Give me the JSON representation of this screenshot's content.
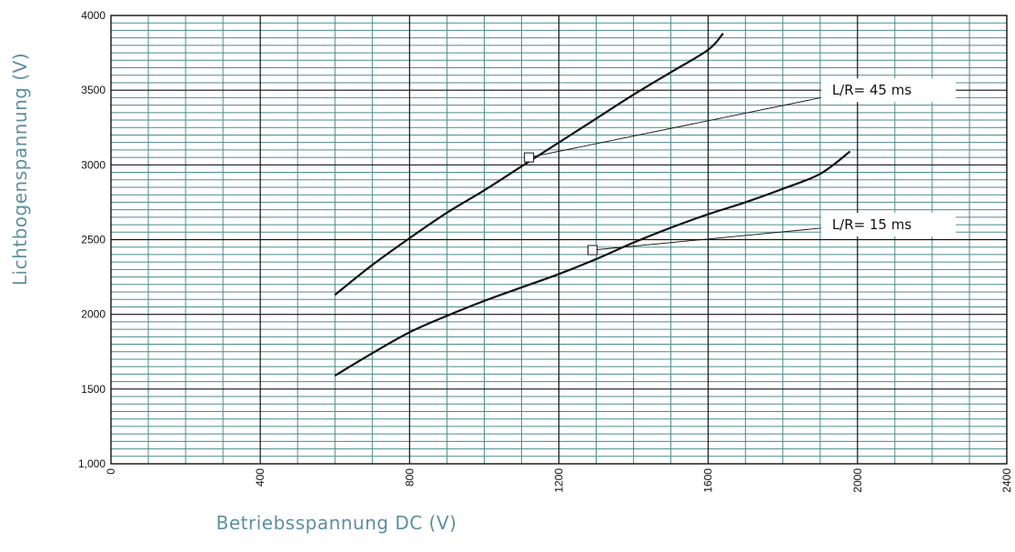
{
  "chart_data": {
    "type": "line",
    "title": "",
    "xlabel": "Betriebsspannung DC (V)",
    "ylabel": "Lichtbogenspannung (V)",
    "xlim": [
      0,
      2400
    ],
    "ylim": [
      1000,
      4000
    ],
    "x_ticks": [
      {
        "value": 0,
        "label": "0"
      },
      {
        "value": 400,
        "label": "400"
      },
      {
        "value": 800,
        "label": "800"
      },
      {
        "value": 1200,
        "label": "1200"
      },
      {
        "value": 1600,
        "label": "1600"
      },
      {
        "value": 2000,
        "label": "2000"
      },
      {
        "value": 2400,
        "label": "2400"
      }
    ],
    "y_ticks": [
      {
        "value": 1000,
        "label": "1,000"
      },
      {
        "value": 1500,
        "label": "1500"
      },
      {
        "value": 2000,
        "label": "2000"
      },
      {
        "value": 2500,
        "label": "2500"
      },
      {
        "value": 3000,
        "label": "3000"
      },
      {
        "value": 3500,
        "label": "3500"
      },
      {
        "value": 4000,
        "label": "4000"
      }
    ],
    "grid": true,
    "series": [
      {
        "name": "L/R= 45 ms",
        "x": [
          600,
          700,
          800,
          900,
          1000,
          1100,
          1200,
          1300,
          1400,
          1500,
          1600,
          1640
        ],
        "y": [
          2130,
          2330,
          2510,
          2680,
          2830,
          2990,
          3150,
          3310,
          3470,
          3620,
          3770,
          3880
        ],
        "marker": {
          "x": 1120,
          "y": 3050
        },
        "label_anchor": {
          "x": 2000,
          "y": 3500
        }
      },
      {
        "name": "L/R= 15 ms",
        "x": [
          600,
          700,
          800,
          900,
          1000,
          1100,
          1200,
          1300,
          1400,
          1500,
          1600,
          1700,
          1800,
          1900,
          1980
        ],
        "y": [
          1590,
          1740,
          1880,
          1990,
          2090,
          2180,
          2270,
          2370,
          2480,
          2580,
          2670,
          2750,
          2840,
          2940,
          3090
        ],
        "marker": {
          "x": 1290,
          "y": 2430
        },
        "label_anchor": {
          "x": 2000,
          "y": 2600
        }
      }
    ],
    "colors": {
      "grid_minor": "#4b8a8c",
      "grid_major": "#111111",
      "curve": "#111111",
      "axis_title": "#5d8fa2"
    }
  }
}
